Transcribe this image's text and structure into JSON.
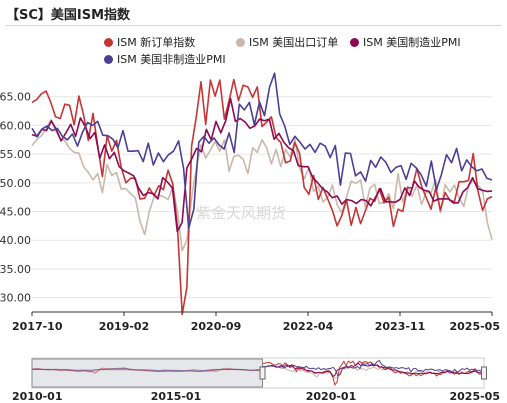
{
  "title": "【SC】美国ISM指数",
  "watermark": "紫金天风期货",
  "colors": {
    "new_orders": "#c63535",
    "export_orders": "#c9b8ab",
    "pmi": "#8b0a50",
    "nonmfg_pmi": "#4b3f96"
  },
  "chart_data": {
    "type": "line",
    "title": "【SC】美国ISM指数",
    "xlabel": "",
    "ylabel": "",
    "ylim": [
      27.5,
      70
    ],
    "yticks": [
      "65.00",
      "60.00",
      "55.00",
      "50.00",
      "45.00",
      "40.00",
      "35.00",
      "30.00"
    ],
    "yticks_values": [
      65,
      60,
      55,
      50,
      45,
      40,
      35,
      30
    ],
    "xticks": [
      "2017-10",
      "2019-02",
      "2020-09",
      "2022-04",
      "2023-11",
      "2025-05"
    ],
    "grid": "horizontal",
    "legend_position": "top",
    "start": "2017-10",
    "end": "2025-05",
    "series": [
      {
        "name": "ISM 新订单指数",
        "color_key": "new_orders",
        "values": [
          64.0,
          64.5,
          65.5,
          66.0,
          64.0,
          61.5,
          61.2,
          63.7,
          63.5,
          60.1,
          65.1,
          61.8,
          57.4,
          62.1,
          56.5,
          51.1,
          58.2,
          55.5,
          57.4,
          52.7,
          50.0,
          50.8,
          50.8,
          47.2,
          47.3,
          49.1,
          47.8,
          49.5,
          48.8,
          52.2,
          49.8,
          42.2,
          27.1,
          31.8,
          56.4,
          61.5,
          67.6,
          60.2,
          67.9,
          65.1,
          67.9,
          61.1,
          64.3,
          68.0,
          64.3,
          67.0,
          66.7,
          64.9,
          66.7,
          59.8,
          60.6,
          61.5,
          57.9,
          57.0,
          53.5,
          53.8,
          57.0,
          55.1,
          49.2,
          48.0,
          51.3,
          47.1,
          49.2,
          47.2,
          45.2,
          42.5,
          44.3,
          47.0,
          42.6,
          45.7,
          42.9,
          45.1,
          47.3,
          46.8,
          49.0,
          46.5,
          47.5,
          42.4,
          45.4,
          45.0,
          49.2,
          49.1,
          52.5,
          49.4,
          47.4,
          45.4,
          49.1,
          45.2,
          48.3,
          47.0,
          46.7,
          50.2,
          50.2,
          50.4,
          55.1,
          48.6,
          45.2,
          47.2,
          47.6
        ]
      },
      {
        "name": "ISM 美国出口订单",
        "color_key": "export_orders",
        "values": [
          56.5,
          57.5,
          58.2,
          59.4,
          61.0,
          59.1,
          57.7,
          57.3,
          56.0,
          55.3,
          55.2,
          52.8,
          51.8,
          50.5,
          51.6,
          48.3,
          53.2,
          51.3,
          51.8,
          48.9,
          49.0,
          48.1,
          47.4,
          43.3,
          41.0,
          45.0,
          47.5,
          47.9,
          47.6,
          47.1,
          49.3,
          45.0,
          38.2,
          40.0,
          47.4,
          52.5,
          56.6,
          54.3,
          55.7,
          57.2,
          55.5,
          57.5,
          52.0,
          54.6,
          54.8,
          54.1,
          51.6,
          56.1,
          55.3,
          57.5,
          56.1,
          53.3,
          55.8,
          52.8,
          55.8,
          54.5,
          57.6,
          52.6,
          50.7,
          52.6,
          48.5,
          49.4,
          46.7,
          47.4,
          49.6,
          46.2,
          44.8,
          47.5,
          50.3,
          49.9,
          50.5,
          45.8,
          49.1,
          49.7,
          46.4,
          46.6,
          48.1,
          45.5,
          51.6,
          46.6,
          49.3,
          47.7,
          49.6,
          46.2,
          48.4,
          48.2,
          50.6,
          44.8,
          49.7,
          48.4,
          49.6,
          47.4,
          45.9,
          49.5,
          50.5,
          49.6,
          48.6,
          43.1,
          40.1
        ]
      },
      {
        "name": "ISM 美国制造业PMI",
        "color_key": "pmi",
        "values": [
          58.4,
          58.1,
          59.3,
          59.1,
          60.8,
          59.3,
          57.3,
          58.7,
          60.2,
          58.1,
          61.3,
          59.8,
          57.7,
          58.8,
          54.3,
          56.6,
          54.2,
          55.3,
          52.8,
          52.1,
          51.7,
          51.2,
          49.1,
          47.8,
          48.3,
          48.1,
          47.2,
          50.9,
          50.1,
          49.1,
          41.5,
          43.1,
          52.6,
          54.2,
          56.0,
          55.4,
          59.3,
          57.5,
          60.7,
          58.7,
          60.8,
          64.7,
          60.7,
          61.2,
          60.6,
          59.5,
          59.9,
          61.1,
          60.8,
          61.1,
          57.6,
          58.6,
          57.1,
          56.1,
          55.6,
          53.0,
          52.8,
          52.8,
          50.9,
          50.0,
          49.0,
          48.4,
          47.4,
          47.7,
          46.3,
          47.1,
          46.9,
          46.4,
          47.1,
          46.9,
          46.0,
          47.6,
          49.0,
          46.7,
          46.7,
          46.6,
          47.1,
          49.1,
          47.8,
          50.3,
          49.2,
          48.7,
          48.5,
          46.8,
          47.2,
          47.2,
          47.2,
          46.5,
          46.5,
          48.4,
          49.2,
          50.9,
          49.0,
          48.7,
          48.5,
          48.6
        ]
      },
      {
        "name": "ISM 美国非制造业PMI",
        "color_key": "nonmfg_pmi",
        "values": [
          59.5,
          58.0,
          59.4,
          59.9,
          59.1,
          59.5,
          58.1,
          57.5,
          58.5,
          56.4,
          58.8,
          60.5,
          60.0,
          60.7,
          58.3,
          58.2,
          57.6,
          56.1,
          59.1,
          55.5,
          55.5,
          55.6,
          53.7,
          56.9,
          53.1,
          55.2,
          53.7,
          54.9,
          55.5,
          57.3,
          52.5,
          42.1,
          45.4,
          57.1,
          58.1,
          56.9,
          57.8,
          56.6,
          55.9,
          58.7,
          55.3,
          63.7,
          62.7,
          64.0,
          60.1,
          64.1,
          61.7,
          66.7,
          69.1,
          62.0,
          59.9,
          56.7,
          58.1,
          57.1,
          55.9,
          56.7,
          55.3,
          56.9,
          56.4,
          54.4,
          56.5,
          49.6,
          55.2,
          55.1,
          51.2,
          51.9,
          50.3,
          53.9,
          52.7,
          54.5,
          53.6,
          51.8,
          52.7,
          53.0,
          50.6,
          53.4,
          52.6,
          51.4,
          49.4,
          53.8,
          48.8,
          51.5,
          54.9,
          53.5,
          56.0,
          52.1,
          54.0,
          52.8,
          52.1,
          52.4,
          50.8,
          50.5
        ]
      }
    ]
  },
  "navigator": {
    "labels": [
      "2010-01",
      "2015-01",
      "2020-01",
      "2025-05"
    ],
    "range_start": "2010-01",
    "range_end": "2025-05",
    "window_start": "2017-10",
    "window_end": "2025-05"
  }
}
